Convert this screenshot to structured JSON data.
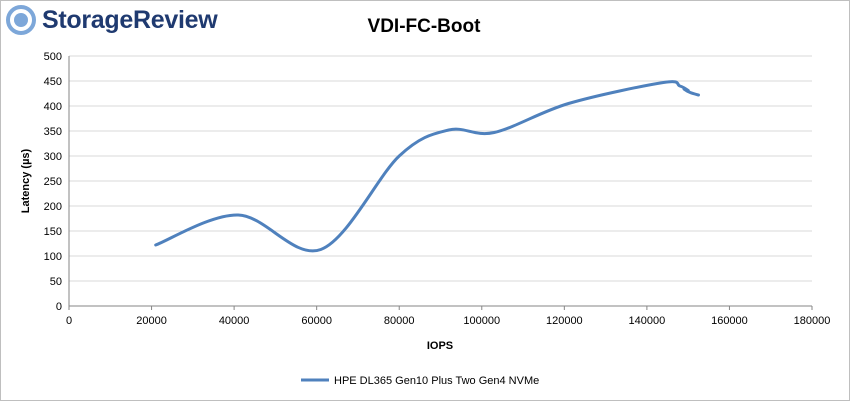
{
  "brand": {
    "name": "StorageReview",
    "logo_icon": "storagereview-logo-icon",
    "color": "#1f3a70"
  },
  "chart_data": {
    "type": "line",
    "title": "VDI-FC-Boot",
    "xlabel": "IOPS",
    "ylabel": "Latency (µs)",
    "xlim": [
      0,
      180000
    ],
    "ylim": [
      0,
      500
    ],
    "xticks": [
      0,
      20000,
      40000,
      60000,
      80000,
      100000,
      120000,
      140000,
      160000,
      180000
    ],
    "yticks": [
      0,
      50,
      100,
      150,
      200,
      250,
      300,
      350,
      400,
      450,
      500
    ],
    "grid": true,
    "legend_position": "bottom",
    "series": [
      {
        "name": "HPE DL365 Gen10 Plus Two Gen4 NVMe",
        "color": "#4f81bd",
        "x": [
          21000,
          41000,
          61000,
          80000,
          92000,
          103000,
          121000,
          144000,
          148000,
          150000,
          149000,
          150500,
          152500
        ],
        "y": [
          122,
          182,
          113,
          300,
          352,
          347,
          405,
          447,
          440,
          431,
          434,
          427,
          422
        ]
      }
    ]
  }
}
